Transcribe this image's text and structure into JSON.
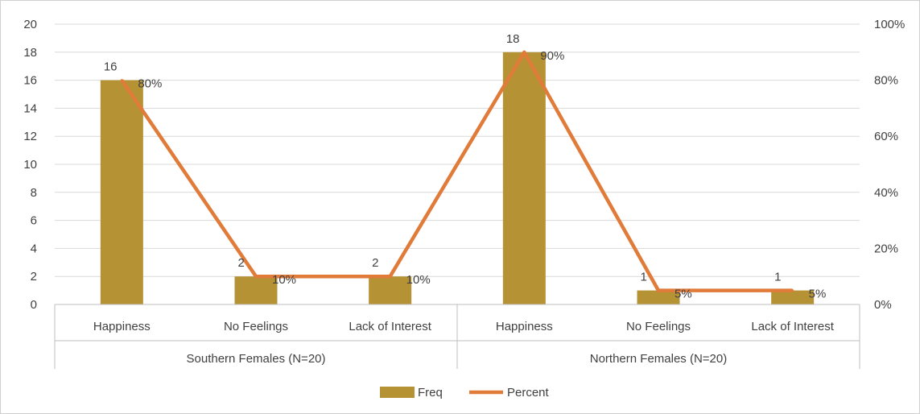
{
  "chart_data": {
    "type": "bar",
    "groups": [
      {
        "label": "Southern Females (N=20)",
        "categories": [
          "Happiness",
          "No Feelings",
          "Lack of Interest"
        ]
      },
      {
        "label": "Northern Females (N=20)",
        "categories": [
          "Happiness",
          "No Feelings",
          "Lack of Interest"
        ]
      }
    ],
    "categories": [
      "Happiness",
      "No Feelings",
      "Lack of Interest",
      "Happiness",
      "No Feelings",
      "Lack of Interest"
    ],
    "series": [
      {
        "name": "Freq",
        "type": "bar",
        "axis": "left",
        "color": "#b59334",
        "values": [
          16,
          2,
          2,
          18,
          1,
          1
        ],
        "labels": [
          "16",
          "2",
          "2",
          "18",
          "1",
          "1"
        ]
      },
      {
        "name": "Percent",
        "type": "line",
        "axis": "right",
        "color": "#e07b39",
        "values": [
          80,
          10,
          10,
          90,
          5,
          5
        ],
        "labels": [
          "80%",
          "10%",
          "10%",
          "90%",
          "5%",
          "5%"
        ]
      }
    ],
    "y_left": {
      "min": 0,
      "max": 20,
      "step": 2,
      "ticks": [
        "0",
        "2",
        "4",
        "6",
        "8",
        "10",
        "12",
        "14",
        "16",
        "18",
        "20"
      ]
    },
    "y_right": {
      "min": 0,
      "max": 100,
      "step": 20,
      "ticks": [
        "0%",
        "20%",
        "40%",
        "60%",
        "80%",
        "100%"
      ]
    },
    "grid": true,
    "legend": {
      "position": "bottom",
      "items": [
        "Freq",
        "Percent"
      ]
    }
  }
}
